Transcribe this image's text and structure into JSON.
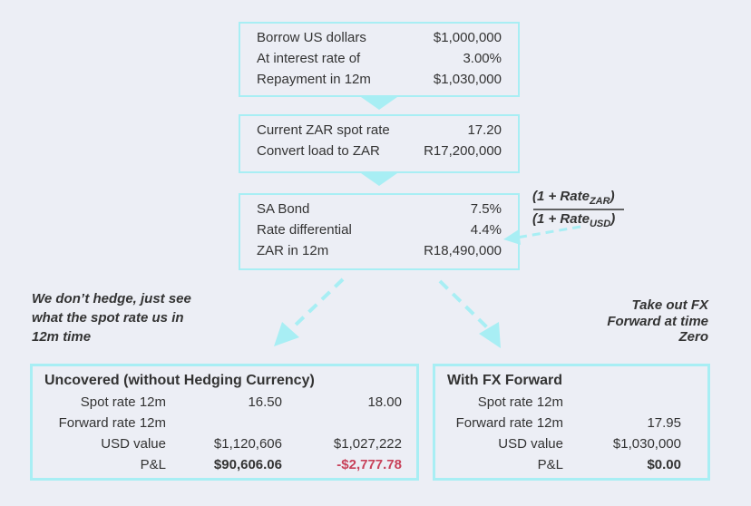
{
  "boxes": [
    {
      "rows": [
        {
          "label": "Borrow US dollars",
          "value": "$1,000,000"
        },
        {
          "label": "At interest rate of",
          "value": "3.00%"
        },
        {
          "label": "Repayment in 12m",
          "value": "$1,030,000"
        }
      ]
    },
    {
      "rows": [
        {
          "label": "Current ZAR spot rate",
          "value": "17.20"
        },
        {
          "label": "Convert load to ZAR",
          "value": "R17,200,000"
        }
      ]
    },
    {
      "rows": [
        {
          "label": "SA Bond",
          "value": "7.5%"
        },
        {
          "label": "Rate differential",
          "value": "4.4%"
        },
        {
          "label": "ZAR in 12m",
          "value": "R18,490,000"
        }
      ]
    }
  ],
  "formula": {
    "numerator": "(1 + Rate",
    "numerator_sub": "ZAR",
    "denominator": "(1 + Rate",
    "denominator_sub": "USD",
    "close": ")"
  },
  "notes": {
    "left": [
      "We don’t hedge, just see",
      "what the spot rate us in",
      "12m time"
    ],
    "right": [
      "Take out FX",
      "Forward at time",
      "Zero"
    ]
  },
  "uncovered": {
    "title": "Uncovered (without Hedging Currency)",
    "rows": [
      {
        "label": "Spot rate 12m",
        "values": [
          "16.50",
          "18.00"
        ]
      },
      {
        "label": "Forward rate 12m",
        "values": []
      },
      {
        "label": "USD value",
        "values": [
          "$1,120,606",
          "$1,027,222"
        ]
      },
      {
        "label": "P&L",
        "values": [
          "$90,606.06",
          "-$2,777.78"
        ]
      }
    ]
  },
  "forward": {
    "title": "With FX Forward",
    "rows": [
      {
        "label": "Spot rate 12m",
        "values": []
      },
      {
        "label": "Forward rate 12m",
        "values": [
          "17.95"
        ]
      },
      {
        "label": "USD value",
        "values": [
          "$1,030,000"
        ]
      },
      {
        "label": "P&L",
        "values": [
          "$0.00"
        ]
      }
    ]
  }
}
